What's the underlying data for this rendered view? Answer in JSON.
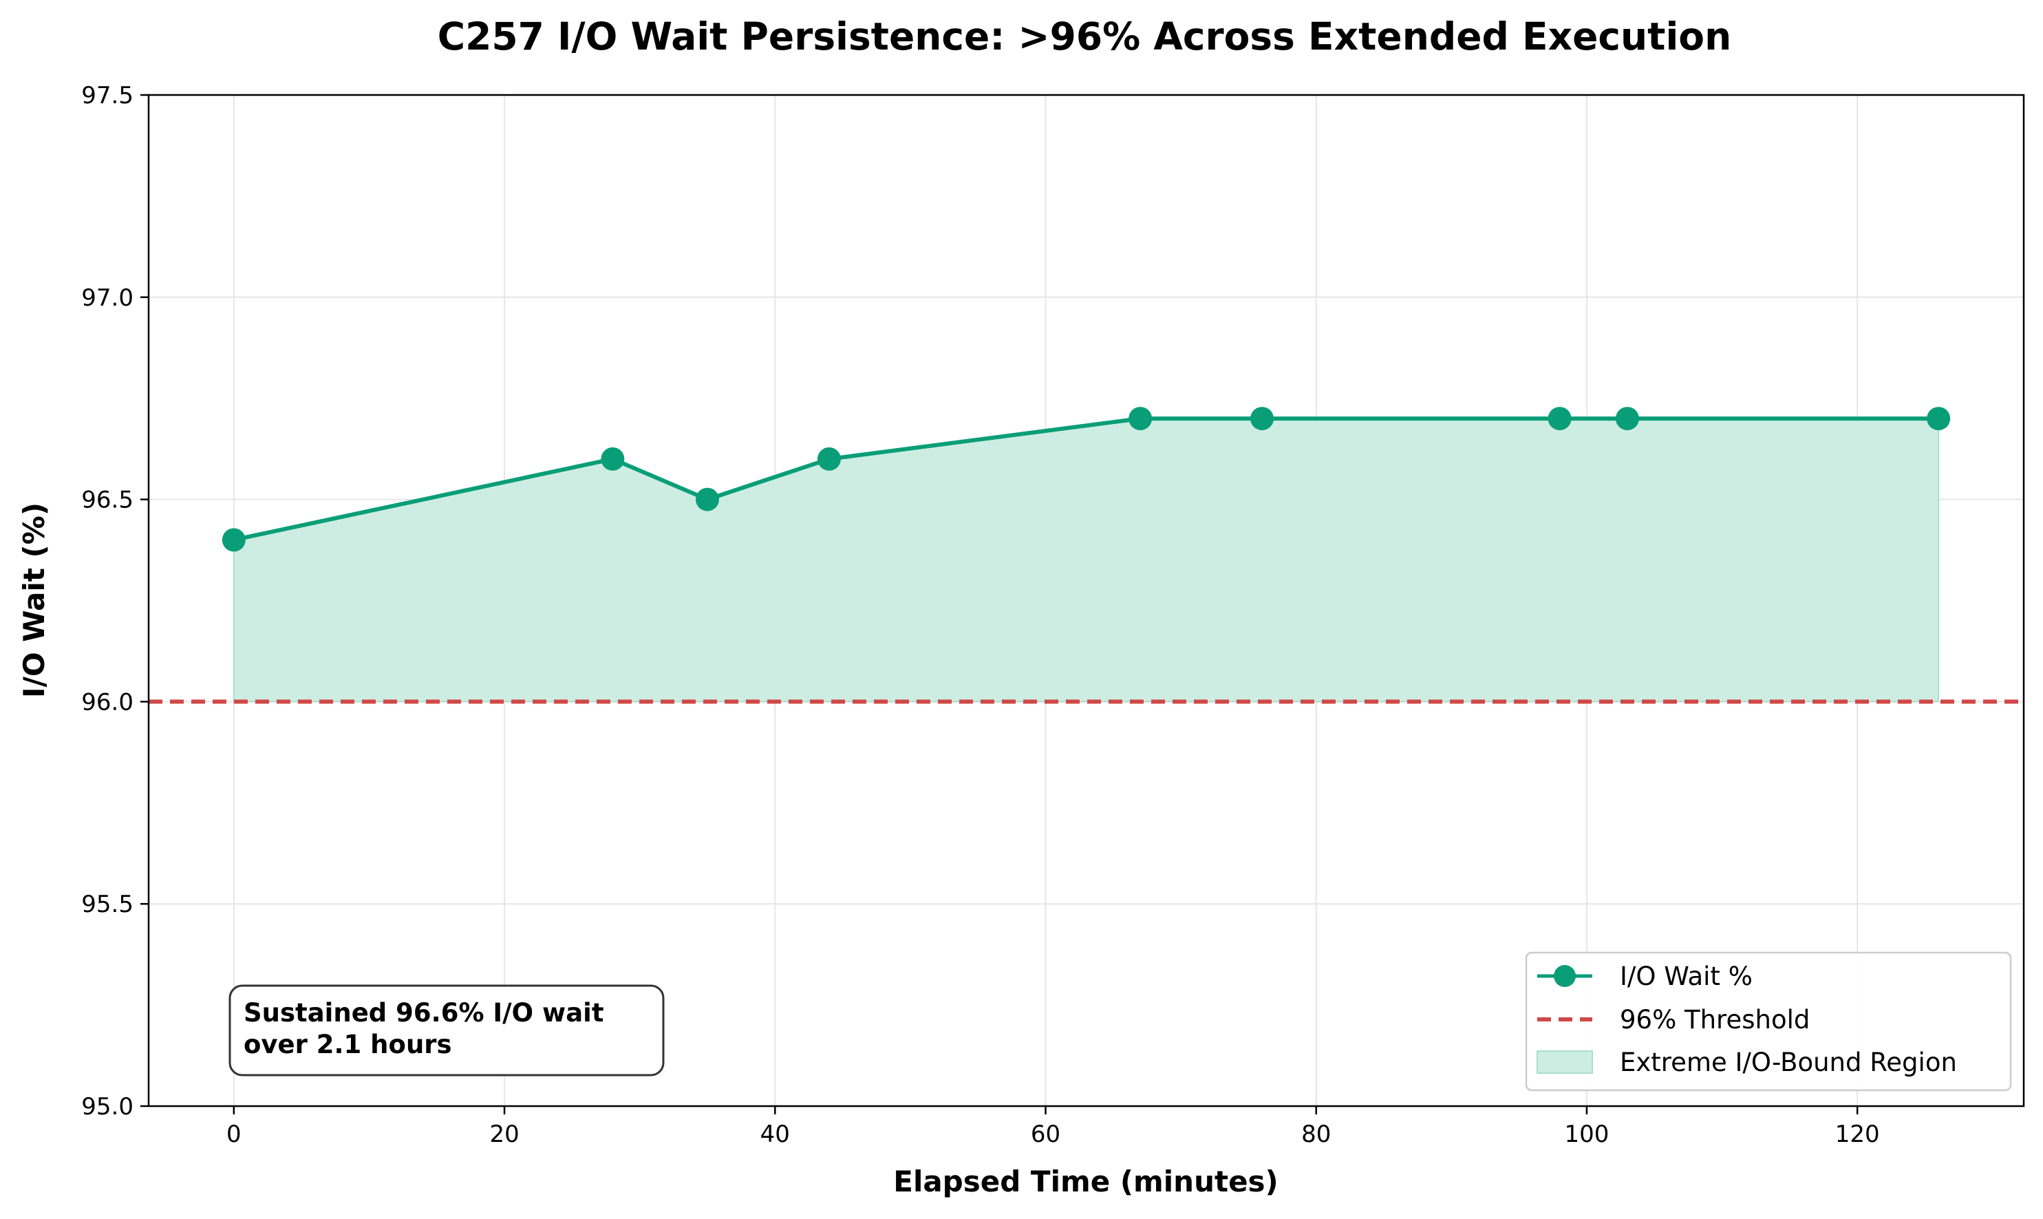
{
  "chart_data": {
    "type": "line",
    "title": "C257 I/O Wait Persistence: >96% Across Extended Execution",
    "xlabel": "Elapsed Time (minutes)",
    "ylabel": "I/O Wait (%)",
    "xlim": [
      -6.3,
      132.3
    ],
    "ylim": [
      95.0,
      97.5
    ],
    "xticks": [
      0,
      20,
      40,
      60,
      80,
      100,
      120
    ],
    "yticks": [
      95.0,
      95.5,
      96.0,
      96.5,
      97.0,
      97.5
    ],
    "xtick_labels": [
      "0",
      "20",
      "40",
      "60",
      "80",
      "100",
      "120"
    ],
    "ytick_labels": [
      "95.0",
      "95.5",
      "96.0",
      "96.5",
      "97.0",
      "97.5"
    ],
    "grid": true,
    "legend_position": "bottom-right",
    "series": [
      {
        "name": "I/O Wait %",
        "color": "#0a9e78",
        "x": [
          0,
          28,
          35,
          44,
          67,
          76,
          98,
          103,
          126
        ],
        "y": [
          96.4,
          96.6,
          96.5,
          96.6,
          96.7,
          96.7,
          96.7,
          96.7,
          96.7
        ]
      }
    ],
    "threshold": {
      "name": "96% Threshold",
      "value": 96.0,
      "color": "#d04848"
    },
    "fill_region": {
      "name": "Extreme I/O-Bound Region",
      "base": 96.0,
      "color": "#cdede3",
      "edge_color": "#a8dfcf"
    },
    "annotation": {
      "lines": [
        "Sustained 96.6% I/O wait",
        "over 2.1 hours"
      ]
    }
  }
}
